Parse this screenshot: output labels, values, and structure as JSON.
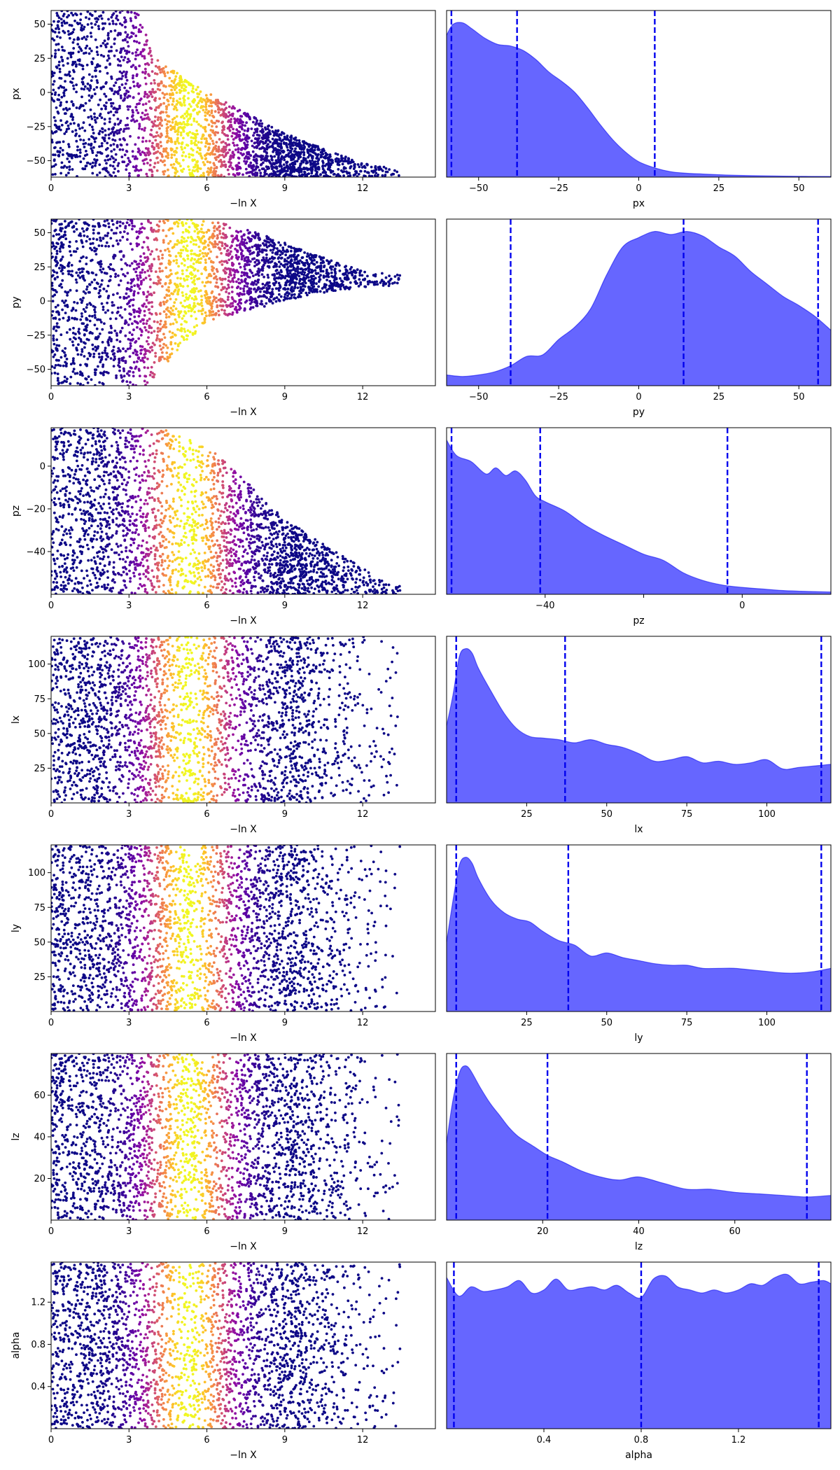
{
  "chart_data": [
    {
      "type": "scatter",
      "xlabel": "−ln X",
      "ylabel": "px",
      "xlim": [
        0,
        14.8
      ],
      "ylim": [
        -62,
        60
      ],
      "x_ticks": [
        0,
        3,
        6,
        9,
        12
      ],
      "x_tick_labels": [
        "0",
        "3",
        "6",
        "9",
        "12"
      ],
      "y_ticks": [
        -50,
        -25,
        0,
        25,
        50
      ],
      "y_tick_labels": [
        "−50",
        "−25",
        "0",
        "25",
        "50"
      ],
      "colormap": "plasma",
      "color_peak_x": 5.3,
      "envelope": [
        [
          0,
          60
        ],
        [
          3.3,
          60
        ],
        [
          4,
          25
        ],
        [
          6,
          0
        ],
        [
          9,
          -30
        ],
        [
          12,
          -52
        ],
        [
          14.8,
          -60
        ]
      ]
    },
    {
      "type": "area",
      "xlabel": "px",
      "ylabel": "",
      "xlim": [
        -60,
        60
      ],
      "ylim": [
        0,
        1.08
      ],
      "x_ticks": [
        -50,
        -25,
        0,
        25,
        50
      ],
      "x_tick_labels": [
        "−50",
        "−25",
        "0",
        "25",
        "50"
      ],
      "x": [
        -60,
        -58,
        -55,
        -52,
        -48,
        -44,
        -40,
        -36,
        -32,
        -28,
        -24,
        -20,
        -16,
        -12,
        -8,
        -4,
        0,
        5,
        10,
        15,
        20,
        30,
        40,
        50,
        60
      ],
      "values": [
        0.92,
        0.99,
        1.0,
        0.96,
        0.9,
        0.86,
        0.85,
        0.82,
        0.76,
        0.68,
        0.62,
        0.55,
        0.45,
        0.34,
        0.24,
        0.16,
        0.1,
        0.06,
        0.035,
        0.025,
        0.02,
        0.012,
        0.008,
        0.005,
        0.004
      ],
      "quantile_lines": [
        -58.5,
        -38,
        5
      ],
      "fill_color": "#6666ff",
      "line_color": "#0000ee"
    },
    {
      "type": "scatter",
      "xlabel": "−ln X",
      "ylabel": "py",
      "xlim": [
        0,
        14.8
      ],
      "ylim": [
        -62,
        60
      ],
      "x_ticks": [
        0,
        3,
        6,
        9,
        12
      ],
      "x_tick_labels": [
        "0",
        "3",
        "6",
        "9",
        "12"
      ],
      "y_ticks": [
        -50,
        -25,
        0,
        25,
        50
      ],
      "y_tick_labels": [
        "−50",
        "−25",
        "0",
        "25",
        "50"
      ],
      "colormap": "plasma",
      "color_peak_x": 5.3,
      "envelope": [
        [
          0,
          -62,
          60
        ],
        [
          3.8,
          -62,
          60
        ],
        [
          4.5,
          -45,
          60
        ],
        [
          6,
          -15,
          60
        ],
        [
          8,
          -5,
          50
        ],
        [
          10,
          5,
          35
        ],
        [
          12,
          10,
          22
        ],
        [
          14.8,
          13,
          16
        ]
      ]
    },
    {
      "type": "area",
      "xlabel": "py",
      "ylabel": "",
      "xlim": [
        -60,
        60
      ],
      "ylim": [
        0,
        1.08
      ],
      "x_ticks": [
        -50,
        -25,
        0,
        25,
        50
      ],
      "x_tick_labels": [
        "−50",
        "−25",
        "0",
        "25",
        "50"
      ],
      "x": [
        -60,
        -55,
        -50,
        -45,
        -40,
        -35,
        -30,
        -25,
        -20,
        -15,
        -10,
        -5,
        0,
        5,
        10,
        15,
        20,
        25,
        30,
        35,
        40,
        45,
        50,
        55,
        60
      ],
      "values": [
        0.07,
        0.06,
        0.07,
        0.09,
        0.13,
        0.19,
        0.2,
        0.3,
        0.38,
        0.5,
        0.72,
        0.9,
        0.96,
        1.0,
        0.98,
        1.0,
        0.97,
        0.9,
        0.84,
        0.74,
        0.66,
        0.58,
        0.52,
        0.45,
        0.36
      ],
      "quantile_lines": [
        -40,
        14,
        56
      ],
      "fill_color": "#6666ff",
      "line_color": "#0000ee"
    },
    {
      "type": "scatter",
      "xlabel": "−ln X",
      "ylabel": "pz",
      "xlim": [
        0,
        14.8
      ],
      "ylim": [
        -60,
        18
      ],
      "x_ticks": [
        0,
        3,
        6,
        9,
        12
      ],
      "x_tick_labels": [
        "0",
        "3",
        "6",
        "9",
        "12"
      ],
      "y_ticks": [
        -40,
        -20,
        0
      ],
      "y_tick_labels": [
        "−40",
        "−20",
        "0"
      ],
      "colormap": "plasma",
      "color_peak_x": 5.3,
      "envelope": [
        [
          0,
          18
        ],
        [
          3.5,
          18
        ],
        [
          5,
          16
        ],
        [
          6.5,
          5
        ],
        [
          9,
          -25
        ],
        [
          11,
          -40
        ],
        [
          13,
          -55
        ],
        [
          14.8,
          -60
        ]
      ]
    },
    {
      "type": "area",
      "xlabel": "pz",
      "ylabel": "",
      "xlim": [
        -60,
        18
      ],
      "ylim": [
        0,
        1.08
      ],
      "x_ticks": [
        -40,
        -20,
        0
      ],
      "x_tick_labels": [
        "−40",
        "",
        "0"
      ],
      "x": [
        -60,
        -58,
        -55,
        -52,
        -50,
        -48,
        -46,
        -44,
        -42,
        -40,
        -36,
        -32,
        -28,
        -24,
        -20,
        -16,
        -12,
        -8,
        -4,
        0,
        4,
        8,
        12,
        18
      ],
      "values": [
        1.0,
        0.9,
        0.86,
        0.78,
        0.82,
        0.77,
        0.8,
        0.74,
        0.64,
        0.6,
        0.54,
        0.45,
        0.38,
        0.32,
        0.26,
        0.22,
        0.14,
        0.09,
        0.06,
        0.045,
        0.035,
        0.025,
        0.02,
        0.015
      ],
      "quantile_lines": [
        -59,
        -41,
        -3
      ],
      "fill_color": "#6666ff",
      "line_color": "#0000ee"
    },
    {
      "type": "scatter",
      "xlabel": "−ln X",
      "ylabel": "lx",
      "xlim": [
        0,
        14.8
      ],
      "ylim": [
        0,
        120
      ],
      "x_ticks": [
        0,
        3,
        6,
        9,
        12
      ],
      "x_tick_labels": [
        "0",
        "3",
        "6",
        "9",
        "12"
      ],
      "y_ticks": [
        25,
        50,
        75,
        100
      ],
      "y_tick_labels": [
        "25",
        "50",
        "75",
        "100"
      ],
      "colormap": "plasma",
      "color_peak_x": 5.3,
      "envelope": [
        [
          0,
          0,
          120
        ],
        [
          14.8,
          0,
          120
        ]
      ]
    },
    {
      "type": "area",
      "xlabel": "lx",
      "ylabel": "",
      "xlim": [
        0,
        120
      ],
      "ylim": [
        0,
        1.08
      ],
      "x_ticks": [
        25,
        50,
        75,
        100
      ],
      "x_tick_labels": [
        "25",
        "50",
        "75",
        "100"
      ],
      "x": [
        0,
        2,
        4,
        6,
        8,
        10,
        14,
        18,
        22,
        26,
        30,
        35,
        40,
        45,
        50,
        55,
        60,
        65,
        70,
        75,
        80,
        85,
        90,
        95,
        100,
        105,
        110,
        115,
        120
      ],
      "values": [
        0.5,
        0.7,
        0.95,
        1.0,
        0.97,
        0.87,
        0.72,
        0.58,
        0.48,
        0.43,
        0.42,
        0.41,
        0.39,
        0.41,
        0.38,
        0.36,
        0.32,
        0.27,
        0.28,
        0.3,
        0.26,
        0.27,
        0.25,
        0.26,
        0.28,
        0.22,
        0.23,
        0.24,
        0.25
      ],
      "quantile_lines": [
        3,
        37,
        117
      ],
      "fill_color": "#6666ff",
      "line_color": "#0000ee"
    },
    {
      "type": "scatter",
      "xlabel": "−ln X",
      "ylabel": "ly",
      "xlim": [
        0,
        14.8
      ],
      "ylim": [
        0,
        120
      ],
      "x_ticks": [
        0,
        3,
        6,
        9,
        12
      ],
      "x_tick_labels": [
        "0",
        "3",
        "6",
        "9",
        "12"
      ],
      "y_ticks": [
        25,
        50,
        75,
        100
      ],
      "y_tick_labels": [
        "25",
        "50",
        "75",
        "100"
      ],
      "colormap": "plasma",
      "color_peak_x": 5.3,
      "envelope": [
        [
          0,
          0,
          120
        ],
        [
          14.8,
          0,
          120
        ]
      ]
    },
    {
      "type": "area",
      "xlabel": "ly",
      "ylabel": "",
      "xlim": [
        0,
        120
      ],
      "ylim": [
        0,
        1.08
      ],
      "x_ticks": [
        25,
        50,
        75,
        100
      ],
      "x_tick_labels": [
        "25",
        "50",
        "75",
        "100"
      ],
      "x": [
        0,
        2,
        4,
        6,
        8,
        10,
        14,
        18,
        22,
        26,
        30,
        35,
        40,
        45,
        50,
        55,
        60,
        65,
        70,
        75,
        80,
        85,
        90,
        95,
        100,
        105,
        110,
        115,
        120
      ],
      "values": [
        0.45,
        0.72,
        0.95,
        1.0,
        0.96,
        0.86,
        0.72,
        0.64,
        0.6,
        0.58,
        0.52,
        0.46,
        0.43,
        0.36,
        0.38,
        0.35,
        0.33,
        0.31,
        0.3,
        0.3,
        0.28,
        0.28,
        0.28,
        0.27,
        0.26,
        0.25,
        0.25,
        0.26,
        0.28
      ],
      "quantile_lines": [
        3,
        38,
        117
      ],
      "fill_color": "#6666ff",
      "line_color": "#0000ee"
    },
    {
      "type": "scatter",
      "xlabel": "−ln X",
      "ylabel": "lz",
      "xlim": [
        0,
        14.8
      ],
      "ylim": [
        0,
        80
      ],
      "x_ticks": [
        0,
        3,
        6,
        9,
        12
      ],
      "x_tick_labels": [
        "0",
        "3",
        "6",
        "9",
        "12"
      ],
      "y_ticks": [
        20,
        40,
        60
      ],
      "y_tick_labels": [
        "20",
        "40",
        "60"
      ],
      "colormap": "plasma",
      "color_peak_x": 5.3,
      "envelope": [
        [
          0,
          0,
          80
        ],
        [
          14.8,
          0,
          80
        ]
      ]
    },
    {
      "type": "area",
      "xlabel": "lz",
      "ylabel": "",
      "xlim": [
        0,
        80
      ],
      "ylim": [
        0,
        1.08
      ],
      "x_ticks": [
        20,
        40,
        60
      ],
      "x_tick_labels": [
        "20",
        "40",
        "60"
      ],
      "x": [
        0,
        1,
        2,
        3,
        4,
        5,
        7,
        9,
        11,
        13,
        15,
        18,
        21,
        24,
        28,
        32,
        36,
        40,
        45,
        50,
        55,
        60,
        65,
        70,
        75,
        80
      ],
      "values": [
        0.5,
        0.72,
        0.88,
        0.98,
        1.0,
        0.97,
        0.86,
        0.76,
        0.68,
        0.6,
        0.54,
        0.48,
        0.42,
        0.38,
        0.32,
        0.28,
        0.26,
        0.28,
        0.24,
        0.2,
        0.2,
        0.18,
        0.17,
        0.16,
        0.15,
        0.16
      ],
      "quantile_lines": [
        2,
        21,
        75
      ],
      "fill_color": "#6666ff",
      "line_color": "#0000ee"
    },
    {
      "type": "scatter",
      "xlabel": "−ln X",
      "ylabel": "alpha",
      "xlim": [
        0,
        14.8
      ],
      "ylim": [
        0,
        1.58
      ],
      "x_ticks": [
        0,
        3,
        6,
        9,
        12
      ],
      "x_tick_labels": [
        "0",
        "3",
        "6",
        "9",
        "12"
      ],
      "y_ticks": [
        0.4,
        0.8,
        1.2
      ],
      "y_tick_labels": [
        "0.4",
        "0.8",
        "1.2"
      ],
      "colormap": "plasma",
      "color_peak_x": 5.3,
      "envelope": [
        [
          0,
          0,
          1.58
        ],
        [
          14.8,
          0,
          1.58
        ]
      ]
    },
    {
      "type": "area",
      "xlabel": "alpha",
      "ylabel": "",
      "xlim": [
        0,
        1.58
      ],
      "ylim": [
        0,
        1.08
      ],
      "x_ticks": [
        0.4,
        0.8,
        1.2
      ],
      "x_tick_labels": [
        "0.4",
        "0.8",
        "1.2"
      ],
      "x": [
        0,
        0.05,
        0.1,
        0.15,
        0.2,
        0.25,
        0.3,
        0.35,
        0.4,
        0.45,
        0.5,
        0.55,
        0.6,
        0.65,
        0.7,
        0.75,
        0.8,
        0.85,
        0.9,
        0.95,
        1.0,
        1.05,
        1.1,
        1.15,
        1.2,
        1.25,
        1.3,
        1.35,
        1.4,
        1.45,
        1.5,
        1.55,
        1.58
      ],
      "values": [
        0.98,
        0.86,
        0.92,
        0.89,
        0.9,
        0.92,
        0.96,
        0.88,
        0.9,
        0.97,
        0.9,
        0.91,
        0.92,
        0.9,
        0.93,
        0.88,
        0.85,
        0.97,
        0.99,
        0.92,
        0.9,
        0.88,
        0.9,
        0.88,
        0.9,
        0.94,
        0.93,
        0.98,
        1.0,
        0.94,
        0.95,
        0.96,
        0.94
      ],
      "quantile_lines": [
        0.03,
        0.8,
        1.53
      ],
      "fill_color": "#6666ff",
      "line_color": "#0000ee"
    }
  ]
}
